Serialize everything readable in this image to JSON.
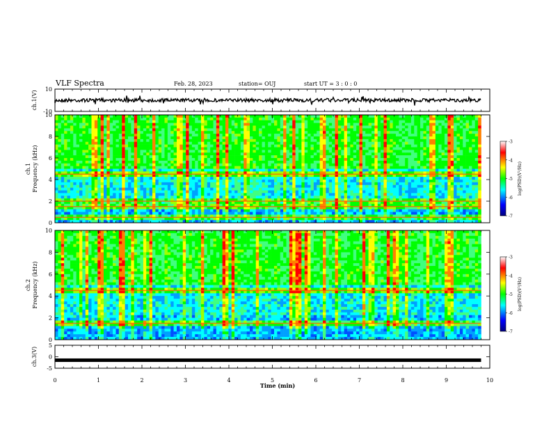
{
  "header": {
    "title": "VLF Spectra",
    "date": "Feb. 28, 2023",
    "station": "station= OUJ",
    "start": "start  UT =  3 : 0  : 0"
  },
  "chart_data": [
    {
      "type": "line",
      "panel": "ch1-waveform",
      "ylabel": "ch.1(V)",
      "ylim": [
        -10,
        10
      ],
      "yticks": [
        "10",
        "-10"
      ],
      "xlim": [
        0,
        10
      ],
      "baseline": 0,
      "color": "#000000"
    },
    {
      "type": "heatmap",
      "panel": "ch1-spectrogram",
      "ylabel_lines": [
        "ch.1",
        "Frequency (kHz)"
      ],
      "ylim": [
        0,
        10
      ],
      "yticks": [
        "0",
        "2",
        "4",
        "6",
        "8",
        "10"
      ],
      "xlim": [
        0,
        10
      ],
      "data_end_min": 9.8,
      "bands_khz": [
        0.5,
        1.5,
        2.0,
        4.5
      ],
      "colorbar": {
        "label": "log(PSD)(V²/Hz)",
        "range": [
          -7,
          -3
        ],
        "ticks": [
          "-3",
          "-4",
          "-5",
          "-6",
          "-7"
        ]
      }
    },
    {
      "type": "heatmap",
      "panel": "ch2-spectrogram",
      "ylabel_lines": [
        "ch.2",
        "Frequency (kHz)"
      ],
      "ylim": [
        0,
        10
      ],
      "yticks": [
        "0",
        "2",
        "4",
        "6",
        "8",
        "10"
      ],
      "xlim": [
        0,
        10
      ],
      "data_end_min": 9.8,
      "bands_khz": [
        1.5,
        4.5
      ],
      "colorbar": {
        "label": "log(PSD)(V²/Hz)",
        "range": [
          -7,
          -3
        ],
        "ticks": [
          "-3",
          "-4",
          "-5",
          "-6",
          "-7"
        ]
      }
    },
    {
      "type": "line",
      "panel": "ch3-waveform",
      "ylabel": "ch.3(V)",
      "ylim": [
        -5,
        5
      ],
      "yticks": [
        "5",
        "0",
        "-5"
      ],
      "xlim": [
        0,
        10
      ],
      "baseline": -1.5,
      "color": "#000000"
    }
  ],
  "xaxis": {
    "label": "Time (min)",
    "ticks": [
      "0",
      "1",
      "2",
      "3",
      "4",
      "5",
      "6",
      "7",
      "8",
      "9",
      "10"
    ]
  }
}
